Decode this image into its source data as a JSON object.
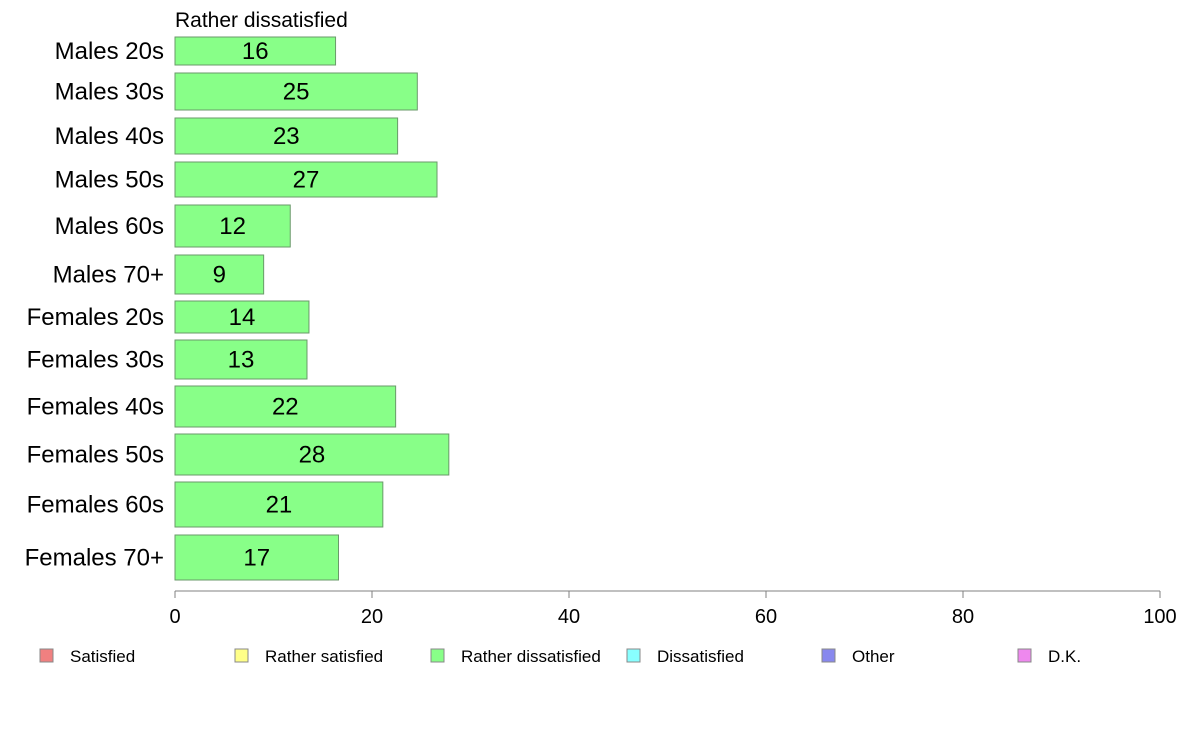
{
  "chart_data": {
    "type": "bar",
    "orientation": "horizontal",
    "title": "Rather dissatisfied",
    "categories": [
      "Males 20s",
      "Males 30s",
      "Males 40s",
      "Males 50s",
      "Males 60s",
      "Males 70+",
      "Females 20s",
      "Females 30s",
      "Females 40s",
      "Females 50s",
      "Females 60s",
      "Females 70+"
    ],
    "series": [
      {
        "name": "Rather dissatisfied",
        "values": [
          16.3,
          24.6,
          22.6,
          26.6,
          11.7,
          9.0,
          13.6,
          13.4,
          22.4,
          27.8,
          21.1,
          16.6
        ],
        "labels": [
          "16",
          "25",
          "23",
          "27",
          "12",
          "9",
          "14",
          "13",
          "22",
          "28",
          "21",
          "17"
        ],
        "color": "#88ff88"
      }
    ],
    "xlim": [
      0,
      100
    ],
    "xticks": [
      0,
      20,
      40,
      60,
      80,
      100
    ],
    "grid": false,
    "legend": {
      "placement": "bottom",
      "items": [
        {
          "label": "Satisfied",
          "color": "#f08080"
        },
        {
          "label": "Rather satisfied",
          "color": "#ffff88"
        },
        {
          "label": "Rather dissatisfied",
          "color": "#88ff88"
        },
        {
          "label": "Dissatisfied",
          "color": "#88ffff"
        },
        {
          "label": "Other",
          "color": "#8888ee"
        },
        {
          "label": "D.K.",
          "color": "#ee88ee"
        }
      ]
    }
  }
}
